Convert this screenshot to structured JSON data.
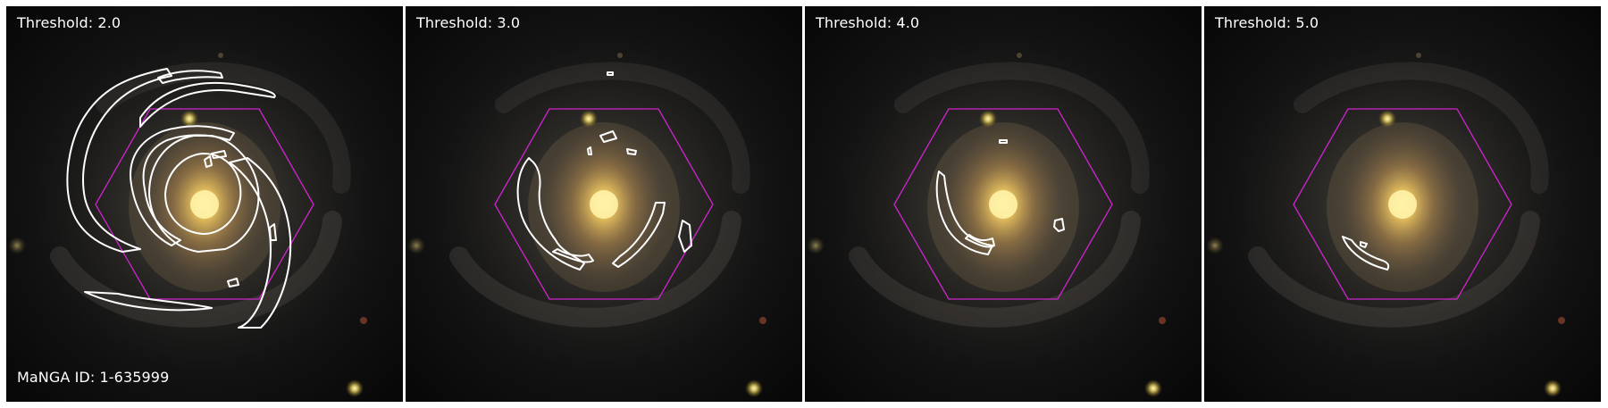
{
  "figure": {
    "galaxy_id_label": "MaNGA ID: 1-635999",
    "colors": {
      "contour": "#ffffff",
      "hexagon": "#d024d0",
      "core": "#f6e27a",
      "background": "#0b0b0d"
    },
    "panels": [
      {
        "threshold_label": "Threshold: 2.0",
        "threshold": 2.0
      },
      {
        "threshold_label": "Threshold: 3.0",
        "threshold": 3.0
      },
      {
        "threshold_label": "Threshold: 4.0",
        "threshold": 4.0
      },
      {
        "threshold_label": "Threshold: 5.0",
        "threshold": 5.0
      }
    ]
  }
}
